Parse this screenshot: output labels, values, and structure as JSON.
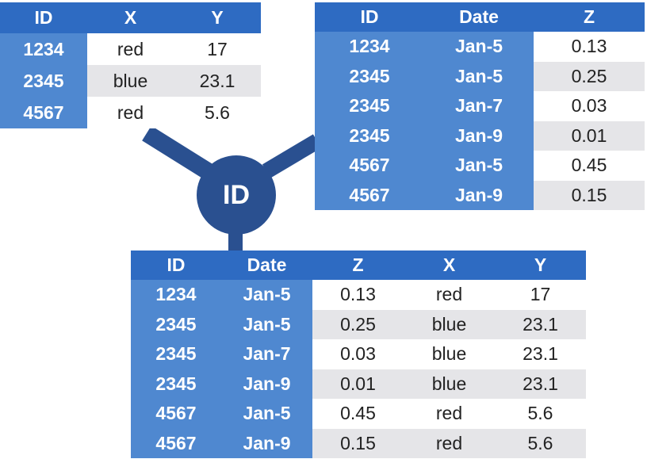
{
  "left_table": {
    "headers": [
      "ID",
      "X",
      "Y"
    ],
    "rows": [
      {
        "id": "1234",
        "x": "red",
        "y": "17"
      },
      {
        "id": "2345",
        "x": "blue",
        "y": "23.1"
      },
      {
        "id": "4567",
        "x": "red",
        "y": "5.6"
      }
    ]
  },
  "right_table": {
    "headers": [
      "ID",
      "Date",
      "Z"
    ],
    "rows": [
      {
        "id": "1234",
        "date": "Jan-5",
        "z": "0.13"
      },
      {
        "id": "2345",
        "date": "Jan-5",
        "z": "0.25"
      },
      {
        "id": "2345",
        "date": "Jan-7",
        "z": "0.03"
      },
      {
        "id": "2345",
        "date": "Jan-9",
        "z": "0.01"
      },
      {
        "id": "4567",
        "date": "Jan-5",
        "z": "0.45"
      },
      {
        "id": "4567",
        "date": "Jan-9",
        "z": "0.15"
      }
    ]
  },
  "join_node": {
    "label": "ID"
  },
  "result_table": {
    "headers": [
      "ID",
      "Date",
      "Z",
      "X",
      "Y"
    ],
    "rows": [
      {
        "id": "1234",
        "date": "Jan-5",
        "z": "0.13",
        "x": "red",
        "y": "17"
      },
      {
        "id": "2345",
        "date": "Jan-5",
        "z": "0.25",
        "x": "blue",
        "y": "23.1"
      },
      {
        "id": "2345",
        "date": "Jan-7",
        "z": "0.03",
        "x": "blue",
        "y": "23.1"
      },
      {
        "id": "2345",
        "date": "Jan-9",
        "z": "0.01",
        "x": "blue",
        "y": "23.1"
      },
      {
        "id": "4567",
        "date": "Jan-5",
        "z": "0.45",
        "x": "red",
        "y": "5.6"
      },
      {
        "id": "4567",
        "date": "Jan-9",
        "z": "0.15",
        "x": "red",
        "y": "5.6"
      }
    ]
  },
  "colors": {
    "header": "#2e6bc2",
    "key_cell": "#4f88d0",
    "alt_row": "#e5e5e8",
    "connector": "#2a5090"
  }
}
